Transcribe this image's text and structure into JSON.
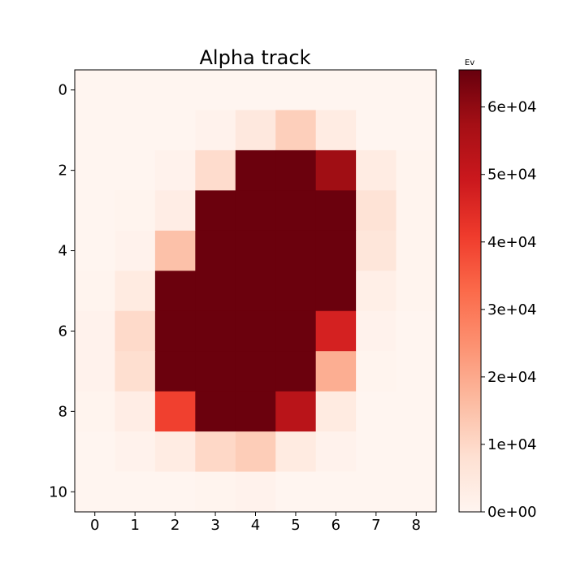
{
  "chart_data": {
    "type": "heatmap",
    "title": "Alpha track",
    "xlabel": "",
    "ylabel": "",
    "x_ticks": [
      "0",
      "1",
      "2",
      "3",
      "4",
      "5",
      "6",
      "7",
      "8"
    ],
    "y_ticks": [
      "0",
      "2",
      "4",
      "6",
      "8",
      "10"
    ],
    "rows": 11,
    "cols": 9,
    "values": [
      [
        0,
        0,
        0,
        0,
        0,
        0,
        0,
        0,
        0
      ],
      [
        0,
        0,
        0,
        1000,
        5000,
        12000,
        3500,
        0,
        0
      ],
      [
        0,
        0,
        1000,
        9000,
        65000,
        65000,
        58000,
        3500,
        500
      ],
      [
        0,
        500,
        3000,
        65000,
        65000,
        65000,
        65000,
        7000,
        500
      ],
      [
        0,
        1000,
        15000,
        65000,
        65000,
        65000,
        65000,
        6000,
        500
      ],
      [
        500,
        4000,
        65000,
        65000,
        65000,
        65000,
        65000,
        2500,
        500
      ],
      [
        1000,
        9500,
        65000,
        65000,
        65000,
        65000,
        47000,
        1000,
        0
      ],
      [
        1000,
        8500,
        65000,
        65000,
        65000,
        65000,
        19000,
        500,
        0
      ],
      [
        500,
        3000,
        40000,
        65000,
        65000,
        53000,
        4000,
        0,
        0
      ],
      [
        0,
        1000,
        3500,
        10000,
        12500,
        4000,
        1000,
        0,
        0
      ],
      [
        0,
        0,
        0,
        500,
        1000,
        0,
        0,
        0,
        0
      ]
    ],
    "colorbar": {
      "label": "Ev",
      "min": 0,
      "max": 65500,
      "ticks": [
        0,
        10000,
        20000,
        30000,
        40000,
        50000,
        60000
      ],
      "tick_labels": [
        "0e+00",
        "1e+04",
        "2e+04",
        "3e+04",
        "4e+04",
        "5e+04",
        "6e+04"
      ],
      "colormap": "Reds",
      "colormap_stops": [
        "#fff5f0",
        "#fee0d2",
        "#fcbba1",
        "#fc9272",
        "#fb6a4a",
        "#ef3b2c",
        "#cb181d",
        "#a50f15",
        "#67000d"
      ]
    },
    "grid": false
  }
}
